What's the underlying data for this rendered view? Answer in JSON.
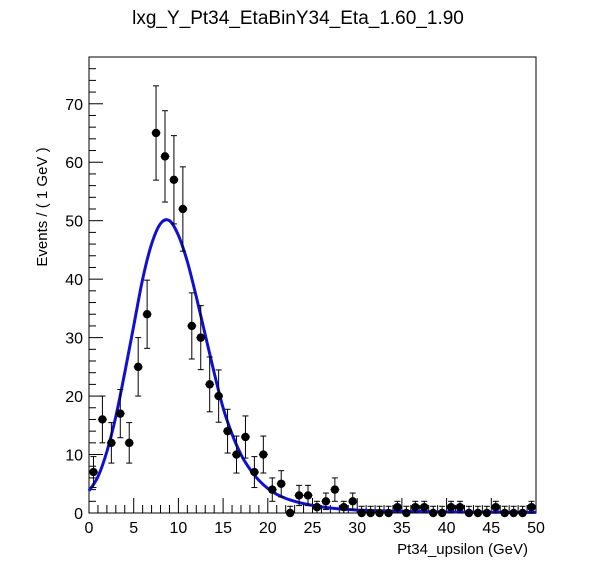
{
  "chart_data": {
    "type": "scatter",
    "title": "lxg_Y_Pt34_EtaBinY34_Eta_1.60_1.90",
    "xlabel": "Pt34_upsilon (GeV)",
    "ylabel": "Events / ( 1 GeV )",
    "xlim": [
      0,
      50
    ],
    "ylim": [
      0,
      78
    ],
    "xticks": [
      0,
      5,
      10,
      15,
      20,
      25,
      30,
      35,
      40,
      45,
      50
    ],
    "yticks": [
      0,
      10,
      20,
      30,
      40,
      50,
      60,
      70
    ],
    "grid": false,
    "legend": "none",
    "colors": {
      "points": "#000000",
      "fit": "#1010d0",
      "frame": "#000000"
    },
    "series": [
      {
        "kind": "points-with-errors",
        "x": [
          0.5,
          1.5,
          2.5,
          3.5,
          4.5,
          5.5,
          6.5,
          7.5,
          8.5,
          9.5,
          10.5,
          11.5,
          12.5,
          13.5,
          14.5,
          15.5,
          16.5,
          17.5,
          18.5,
          19.5,
          20.5,
          21.5,
          22.5,
          23.5,
          24.5,
          25.5,
          26.5,
          27.5,
          28.5,
          29.5,
          30.5,
          31.5,
          32.5,
          33.5,
          34.5,
          35.5,
          36.5,
          37.5,
          38.5,
          39.5,
          40.5,
          41.5,
          42.5,
          43.5,
          44.5,
          45.5,
          46.5,
          47.5,
          48.5,
          49.5
        ],
        "values": [
          7,
          16,
          12,
          17,
          12,
          25,
          34,
          65,
          61,
          57,
          52,
          32,
          30,
          22,
          20,
          14,
          10,
          13,
          7,
          10,
          4,
          5,
          0,
          3,
          3,
          1,
          2,
          4,
          1,
          2,
          0,
          0,
          0,
          0,
          1,
          0,
          1,
          1,
          0,
          0,
          1,
          1,
          0,
          0,
          0,
          1,
          0,
          0,
          0,
          1
        ]
      },
      {
        "kind": "fit-curve",
        "x": [
          0,
          1,
          2,
          3,
          4,
          5,
          6,
          7,
          8,
          9,
          10,
          11,
          12,
          13,
          14,
          15,
          16,
          17,
          18,
          19,
          20,
          21,
          22,
          23,
          24,
          25,
          26,
          27,
          28,
          29,
          30,
          32,
          34,
          36,
          38,
          40,
          42,
          44,
          46,
          48,
          50
        ],
        "values": [
          3.8,
          6.2,
          10.5,
          16.5,
          24,
          32,
          40,
          46,
          49.5,
          50,
          47.5,
          43,
          37,
          30.5,
          24,
          18,
          13.5,
          10,
          7.5,
          5.6,
          4.2,
          3.2,
          2.5,
          2,
          1.6,
          1.3,
          1.05,
          0.85,
          0.7,
          0.6,
          0.5,
          0.38,
          0.3,
          0.25,
          0.21,
          0.18,
          0.16,
          0.14,
          0.12,
          0.11,
          0.1
        ]
      }
    ]
  }
}
